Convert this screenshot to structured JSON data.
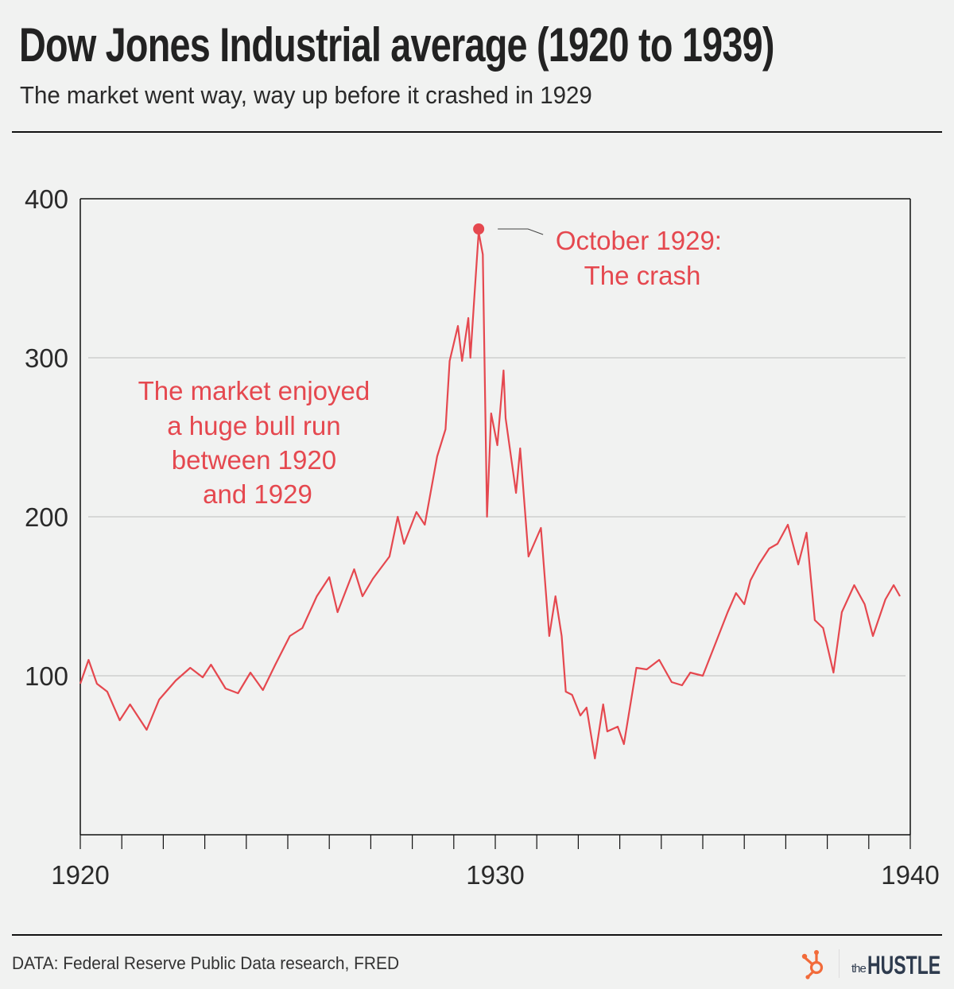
{
  "header": {
    "title": "Dow Jones Industrial average (1920 to 1939)",
    "subtitle": "The market went way, way up before it crashed in 1929"
  },
  "footer": {
    "source": "DATA: Federal Reserve Public Data research, FRED",
    "logo_the": "the",
    "logo_hustle": "HUSTLE",
    "logo_icon": "hubspot-sprocket-icon"
  },
  "colors": {
    "line": "#e5484f",
    "annotation": "#e5484f",
    "logo_icon": "#f26b3a",
    "logo_text": "#2e3b4e",
    "background": "#f1f2f1"
  },
  "chart_data": {
    "type": "line",
    "title": "Dow Jones Industrial average (1920 to 1939)",
    "subtitle": "The market went way, way up before it crashed in 1929",
    "xlabel": "",
    "ylabel": "",
    "xlim": [
      1920,
      1940
    ],
    "ylim": [
      0,
      400
    ],
    "x_ticks": [
      1920,
      1930,
      1940
    ],
    "x_minor_ticks": [
      1920,
      1921,
      1922,
      1923,
      1924,
      1925,
      1926,
      1927,
      1928,
      1929,
      1930,
      1931,
      1932,
      1933,
      1934,
      1935,
      1936,
      1937,
      1938,
      1939,
      1940
    ],
    "y_ticks": [
      100,
      200,
      300,
      400
    ],
    "grid": true,
    "series": [
      {
        "name": "Dow Jones Industrial Average",
        "x": [
          1920.0,
          1920.2,
          1920.4,
          1920.65,
          1920.95,
          1921.2,
          1921.5,
          1921.6,
          1921.9,
          1922.3,
          1922.65,
          1922.95,
          1923.15,
          1923.5,
          1923.8,
          1924.1,
          1924.4,
          1924.7,
          1925.05,
          1925.35,
          1925.7,
          1926.0,
          1926.2,
          1926.6,
          1926.8,
          1927.05,
          1927.45,
          1927.65,
          1927.8,
          1928.1,
          1928.3,
          1928.6,
          1928.8,
          1928.9,
          1929.1,
          1929.2,
          1929.35,
          1929.4,
          1929.5,
          1929.6,
          1929.7,
          1929.8,
          1929.9,
          1930.05,
          1930.2,
          1930.25,
          1930.5,
          1930.6,
          1930.8,
          1931.1,
          1931.3,
          1931.45,
          1931.6,
          1931.7,
          1931.85,
          1932.05,
          1932.2,
          1932.4,
          1932.6,
          1932.7,
          1932.95,
          1933.1,
          1933.4,
          1933.65,
          1933.95,
          1934.25,
          1934.5,
          1934.7,
          1935.0,
          1935.3,
          1935.6,
          1935.8,
          1936.0,
          1936.15,
          1936.35,
          1936.6,
          1936.8,
          1937.05,
          1937.3,
          1937.5,
          1937.7,
          1937.9,
          1938.15,
          1938.35,
          1938.65,
          1938.9,
          1939.1,
          1939.4,
          1939.6,
          1939.75
        ],
        "values": [
          95,
          110,
          95,
          90,
          72,
          82,
          70,
          66,
          85,
          97,
          105,
          99,
          107,
          92,
          89,
          102,
          91,
          107,
          125,
          130,
          150,
          162,
          140,
          167,
          150,
          161,
          175,
          200,
          183,
          203,
          195,
          238,
          255,
          298,
          320,
          298,
          325,
          300,
          340,
          379,
          365,
          200,
          265,
          245,
          292,
          262,
          215,
          243,
          175,
          193,
          125,
          150,
          125,
          90,
          88,
          75,
          80,
          48,
          82,
          65,
          68,
          57,
          105,
          104,
          110,
          96,
          94,
          102,
          100,
          120,
          140,
          152,
          145,
          160,
          170,
          180,
          183,
          195,
          170,
          190,
          135,
          130,
          102,
          140,
          157,
          145,
          125,
          148,
          157,
          150
        ]
      }
    ],
    "highlight_point": {
      "x": 1929.6,
      "value": 381
    },
    "annotations": [
      {
        "id": "crash",
        "lines": [
          "October 1929:",
          "The crash"
        ]
      },
      {
        "id": "bull_run",
        "lines": [
          "The market enjoyed",
          "a huge bull run",
          "between 1920",
          "and 1929"
        ]
      }
    ]
  }
}
